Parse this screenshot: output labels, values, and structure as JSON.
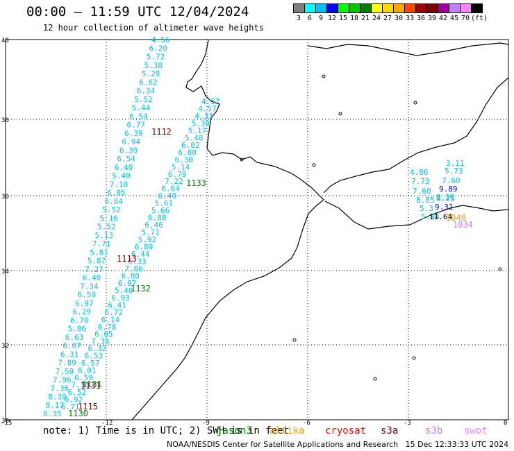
{
  "header": {
    "title": "00:00 – 11:59 UTC 12/04/2024",
    "subtitle": "12 hour collection of altimeter wave heights"
  },
  "scale": {
    "colors": [
      "#808080",
      "#00ffff",
      "#00bfff",
      "#0000ff",
      "#00ff00",
      "#00c800",
      "#008000",
      "#ffff00",
      "#ffd700",
      "#ffa500",
      "#ff4500",
      "#a00000",
      "#800000",
      "#a000a0",
      "#c080ff",
      "#ff80ff",
      "#000000"
    ],
    "labels": [
      "3",
      "6",
      "9",
      "12",
      "15",
      "18",
      "21",
      "24",
      "27",
      "30",
      "33",
      "36",
      "39",
      "42",
      "45",
      "70",
      "(ft)"
    ]
  },
  "axes": {
    "lat_labels": [
      "40",
      "38",
      "36",
      "34",
      "32",
      "30"
    ],
    "lon_labels": [
      "-15",
      "-12",
      "-9",
      "-6",
      "-3",
      "0"
    ]
  },
  "tracks": {
    "cyan": [
      "4.56",
      "6.20",
      "5.72",
      "5.38",
      "5.28",
      "6.62",
      "6.34",
      "5.52",
      "5.44",
      "6.54",
      "6.77",
      "6.39",
      "6.94",
      "6.39",
      "6.54",
      "6.40",
      "5.40",
      "7.10",
      "6.05",
      "6.64",
      "5.52",
      "5.16",
      "5.52",
      "5.13",
      "7.71",
      "5.81",
      "5.87",
      "7.27",
      "6.40",
      "7.34",
      "6.59",
      "6.97",
      "6.29",
      "6.70",
      "5.86",
      "6.63",
      "6.67",
      "6.31",
      "7.89",
      "7.59",
      "7.96",
      "7.36",
      "8.39",
      "8.17",
      "8.35"
    ],
    "cyan2": [
      "4.57",
      "4.57",
      "4.33",
      "5.30",
      "5.17",
      "5.48",
      "6.02",
      "6.80",
      "6.30",
      "5.14",
      "6.79",
      "7.22",
      "6.64",
      "6.40",
      "5.61",
      "5.66",
      "6.08",
      "6.46",
      "5.71",
      "5.92",
      "6.89",
      "6.44",
      "6.33",
      "7.06",
      "6.80",
      "6.97",
      "5.40",
      "6.93",
      "6.41",
      "6.72",
      "6.14",
      "6.78",
      "6.05",
      "7.35",
      "6.32",
      "6.53",
      "6.57",
      "6.01",
      "6.59",
      "7.30",
      "6.52",
      "6.92",
      "6.71"
    ],
    "med": [
      "4.86",
      "3.11",
      "5.73",
      "7.73",
      "7.60",
      "7.60",
      "8.25",
      "8.85",
      "8.20",
      "5.3",
      "5.84"
    ],
    "med_blue": [
      "9.89",
      "9.31"
    ],
    "med_black": [
      "11.64"
    ],
    "ids_darkred": [
      "1112",
      "1113",
      "1131",
      "1115"
    ],
    "ids_green": [
      "1133",
      "1132",
      "1131",
      "1130"
    ],
    "ids_orange": [
      "1040"
    ],
    "ids_purple": [
      "1034"
    ]
  },
  "footer": {
    "note": "note: 1) Time is in UTC; 2) SWH is in feet",
    "satellites": [
      {
        "name": "jason3",
        "color": "#008000"
      },
      {
        "name": "altika",
        "color": "#ffa500"
      },
      {
        "name": "cryosat",
        "color": "#ff0000"
      },
      {
        "name": "s3a",
        "color": "#800000"
      },
      {
        "name": "s3b",
        "color": "#c080ff"
      },
      {
        "name": "swot",
        "color": "#ff80ff"
      }
    ],
    "credit": "NOAA/NESDIS Center for Satellite Applications and Research   15 Dec 12:33:33 UTC 2024"
  }
}
